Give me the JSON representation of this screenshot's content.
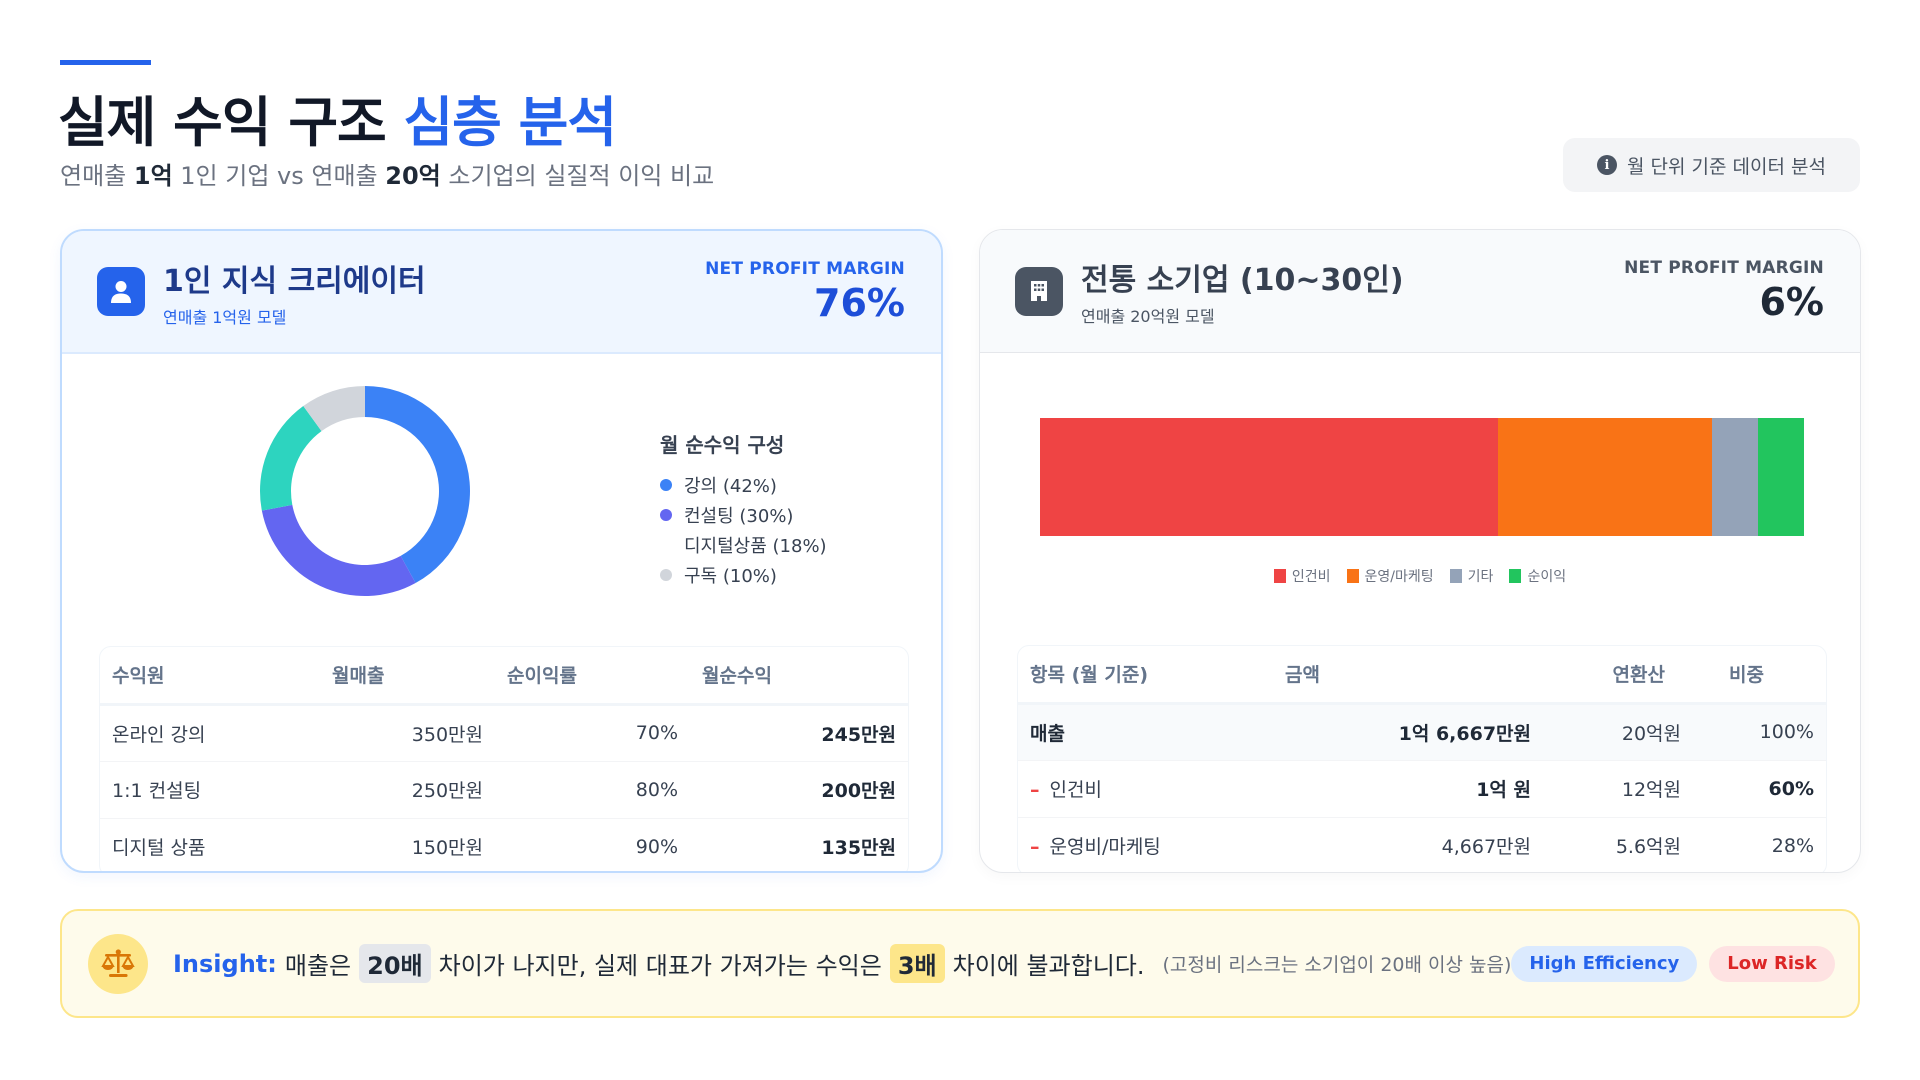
{
  "header": {
    "title_main": "실제 수익 구조 ",
    "title_highlight": "심층 분석",
    "subtitle_parts": [
      "연매출 ",
      "1억",
      " 1인 기업 vs 연매출 ",
      "20억",
      " 소기업의 실질적 이익 비교"
    ],
    "info_badge": {
      "icon": "info-circle-icon",
      "label": "월 단위 기준 데이터 분석"
    }
  },
  "left_card": {
    "icon": "user-icon",
    "title": "1인 지식 크리에이터",
    "subtitle": "연매출 1억원 모델",
    "metric_label": "NET PROFIT MARGIN",
    "metric_value": "76%",
    "legend_title": "월 순수익 구성",
    "legend": [
      {
        "label": "강의 (42%)",
        "color": "#3b82f6",
        "show_dot": true
      },
      {
        "label": "컨설팅 (30%)",
        "color": "#6366f1",
        "show_dot": true
      },
      {
        "label": "디지털상품 (18%)",
        "color": "#2dd4bf",
        "show_dot": false
      },
      {
        "label": "구독 (10%)",
        "color": "#d1d5db",
        "show_dot": true
      }
    ],
    "table": {
      "headers": [
        "수익원",
        "월매출",
        "순이익률",
        "월순수익"
      ],
      "rows": [
        [
          "온라인 강의",
          "350만원",
          "70%",
          "245만원"
        ],
        [
          "1:1 컨설팅",
          "250만원",
          "80%",
          "200만원"
        ],
        [
          "디지털 상품",
          "150만원",
          "90%",
          "135만원"
        ]
      ]
    }
  },
  "right_card": {
    "icon": "building-icon",
    "title": "전통 소기업 (10~30인)",
    "subtitle": "연매출 20억원 모델",
    "metric_label": "NET PROFIT MARGIN",
    "metric_value": "6%",
    "bar_legend": [
      {
        "label": "인건비",
        "color": "#ef4444"
      },
      {
        "label": "운영/마케팅",
        "color": "#f97316"
      },
      {
        "label": "기타",
        "color": "#94a3b8"
      },
      {
        "label": "순이익",
        "color": "#22c55e"
      }
    ],
    "table": {
      "headers": [
        "항목 (월 기준)",
        "금액",
        "연환산",
        "비중"
      ],
      "rows": [
        [
          "매출",
          "1억 6,667만원",
          "20억원",
          "100%"
        ],
        [
          "인건비",
          "1억 원",
          "12억원",
          "60%"
        ],
        [
          "운영비/마케팅",
          "4,667만원",
          "5.6억원",
          "28%"
        ]
      ]
    }
  },
  "chart_data": [
    {
      "type": "pie",
      "title": "월 순수익 구성",
      "categories": [
        "강의",
        "컨설팅",
        "디지털상품",
        "구독"
      ],
      "values": [
        42,
        30,
        18,
        10
      ],
      "colors": [
        "#3b82f6",
        "#6366f1",
        "#2dd4bf",
        "#d1d5db"
      ],
      "donut": true,
      "legend_position": "right"
    },
    {
      "type": "bar",
      "stacked": true,
      "orientation": "horizontal",
      "categories": [
        "전통 소기업"
      ],
      "series": [
        {
          "name": "인건비",
          "values": [
            60
          ],
          "color": "#ef4444"
        },
        {
          "name": "운영/마케팅",
          "values": [
            28
          ],
          "color": "#f97316"
        },
        {
          "name": "기타",
          "values": [
            6
          ],
          "color": "#94a3b8"
        },
        {
          "name": "순이익",
          "values": [
            6
          ],
          "color": "#22c55e"
        }
      ],
      "legend_position": "bottom",
      "xlim": [
        0,
        100
      ]
    }
  ],
  "insight": {
    "icon": "scale-icon",
    "label": "Insight:",
    "text_1": "매출은",
    "chip_1": "20배",
    "text_2": "차이가 나지만, 실제 대표가 가져가는 수익은",
    "chip_2": "3배",
    "text_3": "차이에 불과합니다.",
    "note": "(고정비 리스크는 소기업이 20배 이상 높음)",
    "pills": [
      "High Efficiency",
      "Low Risk"
    ]
  }
}
